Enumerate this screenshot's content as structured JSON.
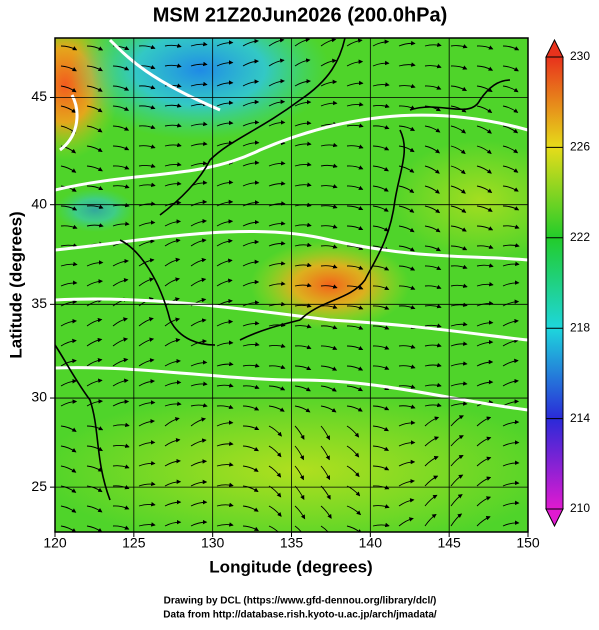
{
  "chart_data": {
    "type": "map",
    "title": "MSM 21Z20Jun2026 (200.0hPa)",
    "xlabel": "Longitude (degrees)",
    "ylabel": "Latitude  (degrees)",
    "xlim": [
      120,
      150
    ],
    "ylim": [
      22.4,
      47.6
    ],
    "xticks": [
      120,
      125,
      130,
      135,
      140,
      145,
      150
    ],
    "yticks": [
      25,
      30,
      35,
      40,
      45
    ],
    "projection": "mercator",
    "grid": true,
    "colorbar": {
      "lim": [
        210,
        230
      ],
      "ticks": [
        210,
        214,
        218,
        222,
        226,
        230
      ]
    }
  },
  "credits": [
    "Drawing by DCL (https://www.gfd-dennou.org/library/dcl/)",
    "Data from http://database.rish.kyoto-u.ac.jp/arch/jmadata/"
  ]
}
